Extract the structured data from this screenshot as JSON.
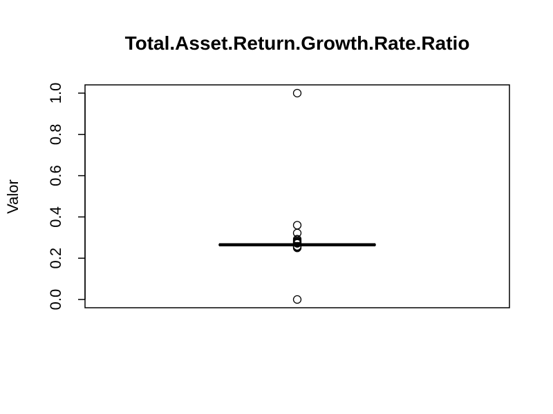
{
  "chart_data": {
    "type": "box",
    "title": "Total.Asset.Return.Growth.Rate.Ratio",
    "xlabel": "",
    "ylabel": "Valor",
    "ylim": [
      -0.04,
      1.04
    ],
    "yticks": [
      0.0,
      0.2,
      0.4,
      0.6,
      0.8,
      1.0
    ],
    "ytick_labels": [
      "0.0",
      "0.2",
      "0.4",
      "0.6",
      "0.8",
      "1.0"
    ],
    "grid": false,
    "legend": "none",
    "box": {
      "q1": 0.263,
      "median": 0.265,
      "q3": 0.267,
      "whisker_low": 0.262,
      "whisker_high": 0.268
    },
    "outliers": [
      1.0,
      0.36,
      0.322,
      0.292,
      0.285,
      0.28,
      0.276,
      0.272,
      0.258,
      0.254,
      0.25,
      0.0
    ]
  }
}
